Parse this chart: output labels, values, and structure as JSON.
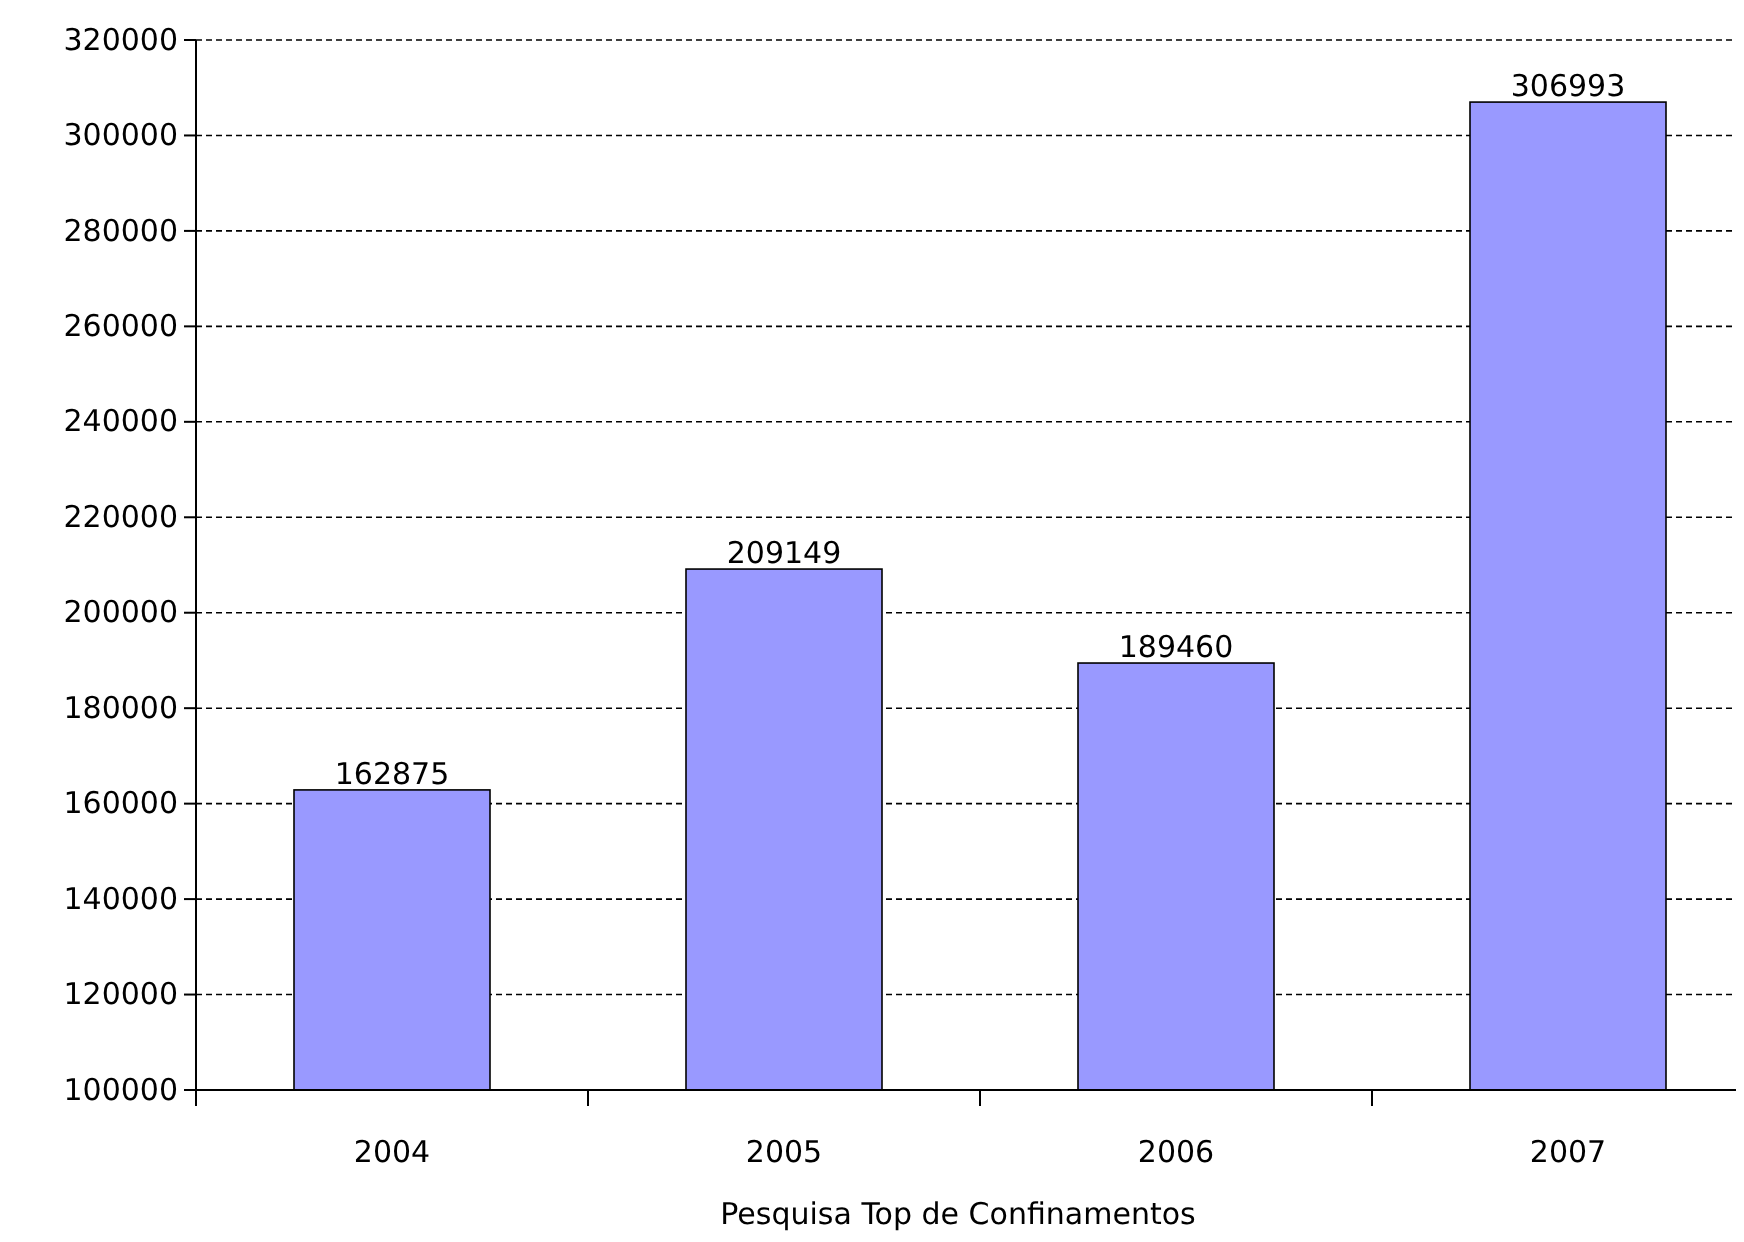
{
  "chart_data": {
    "type": "bar",
    "xlabel": "Pesquisa Top de Confinamentos",
    "categories": [
      "2004",
      "2005",
      "2006",
      "2007"
    ],
    "values": [
      162875,
      209149,
      189460,
      306993
    ],
    "color": "#9999ff",
    "ylim": [
      100000,
      320000
    ],
    "yticks": [
      100000,
      120000,
      140000,
      160000,
      180000,
      200000,
      220000,
      240000,
      260000,
      280000,
      300000,
      320000
    ],
    "grid": "y",
    "data_labels": true
  }
}
